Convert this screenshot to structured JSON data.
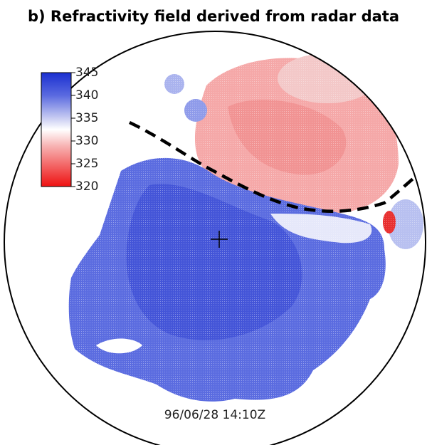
{
  "title": "b) Refractivity field derived from radar data",
  "colorbar": {
    "ticks": [
      345,
      340,
      335,
      330,
      325,
      320
    ],
    "range": [
      320,
      345
    ]
  },
  "timestamp": "96/06/28 14:10Z"
}
